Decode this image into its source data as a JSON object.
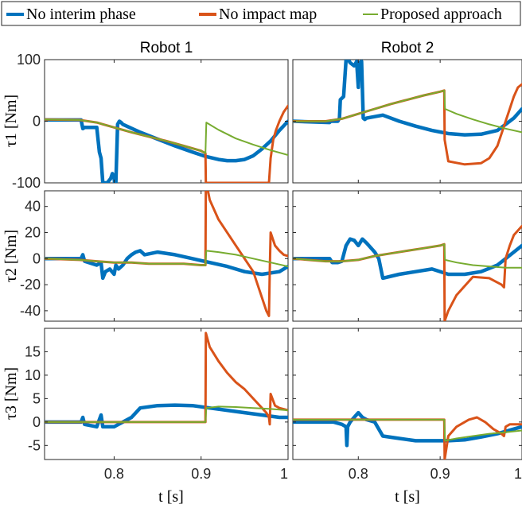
{
  "chart_data": {
    "type": "line",
    "legend": {
      "placement": "top",
      "entries": [
        {
          "name": "No interim phase",
          "color": "#0072BD"
        },
        {
          "name": "No impact map",
          "color": "#D95319"
        },
        {
          "name": "Proposed approach",
          "color": "#77AC30"
        }
      ]
    },
    "columns": [
      {
        "title": "Robot 1",
        "xlabel": "t [s]",
        "xlim": [
          0.72,
          1.0
        ],
        "xticks": [
          0.8,
          0.9,
          1
        ],
        "xticklabels": [
          "0.8",
          "0.9",
          "1"
        ]
      },
      {
        "title": "Robot 2",
        "xlabel": "t [s]",
        "xlim": [
          0.72,
          1.0
        ],
        "xticks": [
          0.8,
          0.9,
          1
        ],
        "xticklabels": [
          "0.8",
          "0.9",
          "1"
        ]
      }
    ],
    "rows": [
      {
        "ylabel": "τ1 [Nm]",
        "ylim": [
          -100,
          100
        ],
        "yticks": [
          -100,
          0,
          100
        ],
        "yticklabels": [
          "-100",
          "0",
          "100"
        ]
      },
      {
        "ylabel": "τ2 [Nm]",
        "ylim": [
          -48,
          52
        ],
        "yticks": [
          -40,
          -20,
          0,
          20,
          40
        ],
        "yticklabels": [
          "-40",
          "-20",
          "0",
          "20",
          "40"
        ]
      },
      {
        "ylabel": "τ3 [Nm]",
        "ylim": [
          -8,
          20
        ],
        "yticks": [
          -5,
          0,
          5,
          10,
          15
        ],
        "yticklabels": [
          "-5",
          "0",
          "5",
          "10",
          "15"
        ]
      }
    ],
    "panels": [
      {
        "row": 0,
        "col": 0,
        "series": [
          {
            "name": "No interim phase",
            "x": [
              0.72,
              0.762,
              0.764,
              0.766,
              0.78,
              0.783,
              0.785,
              0.787,
              0.788,
              0.792,
              0.796,
              0.798,
              0.8,
              0.8005,
              0.802,
              0.804,
              0.806,
              0.808,
              0.81,
              0.83,
              0.85,
              0.87,
              0.89,
              0.905,
              0.92,
              0.93,
              0.94,
              0.95,
              0.96,
              0.97,
              0.98,
              0.99,
              1.0
            ],
            "y": [
              2,
              2,
              -12,
              -10,
              -10,
              -50,
              -60,
              -100,
              -100,
              -100,
              -93,
              -85,
              -90,
              -100,
              -100,
              -5,
              0,
              -2,
              -5,
              -18,
              -29,
              -40,
              -50,
              -57,
              -62,
              -64,
              -64,
              -62,
              -56,
              -45,
              -32,
              -15,
              0
            ]
          },
          {
            "name": "No impact map",
            "x": [
              0.72,
              0.76,
              0.78,
              0.8,
              0.82,
              0.84,
              0.86,
              0.88,
              0.9,
              0.905,
              0.9055,
              0.91,
              0.93,
              0.95,
              0.97,
              0.978,
              0.98,
              0.983,
              0.986,
              0.99,
              0.995,
              1.0
            ],
            "y": [
              3,
              2,
              -2,
              -10,
              -18,
              -25,
              -32,
              -40,
              -48,
              -52,
              -100,
              -100,
              -100,
              -100,
              -100,
              -100,
              -60,
              -30,
              -15,
              0,
              15,
              25
            ]
          },
          {
            "name": "Proposed approach",
            "x": [
              0.72,
              0.76,
              0.78,
              0.8,
              0.82,
              0.84,
              0.86,
              0.88,
              0.9,
              0.905,
              0.906,
              0.92,
              0.94,
              0.96,
              0.98,
              1.0
            ],
            "y": [
              3,
              2,
              -2,
              -10,
              -18,
              -25,
              -32,
              -40,
              -48,
              -52,
              -2,
              -14,
              -28,
              -38,
              -47,
              -55
            ]
          }
        ]
      },
      {
        "row": 0,
        "col": 1,
        "series": [
          {
            "name": "No interim phase",
            "x": [
              0.72,
              0.765,
              0.766,
              0.775,
              0.777,
              0.778,
              0.782,
              0.785,
              0.788,
              0.79,
              0.795,
              0.798,
              0.8,
              0.801,
              0.804,
              0.806,
              0.808,
              0.81,
              0.83,
              0.85,
              0.87,
              0.89,
              0.91,
              0.93,
              0.95,
              0.97,
              0.98,
              0.99,
              1.0
            ],
            "y": [
              0,
              -2,
              0,
              0,
              5,
              35,
              40,
              100,
              100,
              95,
              90,
              97,
              55,
              95,
              97,
              5,
              3,
              5,
              10,
              0,
              -8,
              -15,
              -20,
              -22,
              -21,
              -15,
              -5,
              5,
              20
            ]
          },
          {
            "name": "No impact map",
            "x": [
              0.72,
              0.76,
              0.78,
              0.8,
              0.82,
              0.84,
              0.86,
              0.88,
              0.9,
              0.905,
              0.9055,
              0.91,
              0.93,
              0.95,
              0.96,
              0.97,
              0.975,
              0.98,
              0.985,
              0.99,
              0.995,
              1.0
            ],
            "y": [
              0,
              0,
              4,
              12,
              20,
              28,
              35,
              42,
              48,
              50,
              -30,
              -65,
              -70,
              -68,
              -60,
              -40,
              -20,
              0,
              20,
              40,
              55,
              60
            ]
          },
          {
            "name": "Proposed approach",
            "x": [
              0.72,
              0.76,
              0.78,
              0.8,
              0.82,
              0.84,
              0.86,
              0.88,
              0.9,
              0.905,
              0.906,
              0.92,
              0.94,
              0.96,
              0.98,
              1.0
            ],
            "y": [
              0,
              0,
              4,
              12,
              20,
              28,
              35,
              42,
              48,
              50,
              20,
              12,
              3,
              -5,
              -12,
              -18
            ]
          }
        ]
      },
      {
        "row": 1,
        "col": 0,
        "series": [
          {
            "name": "No interim phase",
            "x": [
              0.72,
              0.762,
              0.764,
              0.766,
              0.78,
              0.785,
              0.787,
              0.79,
              0.795,
              0.8,
              0.802,
              0.805,
              0.81,
              0.815,
              0.82,
              0.825,
              0.83,
              0.835,
              0.85,
              0.87,
              0.89,
              0.91,
              0.93,
              0.95,
              0.97,
              0.99,
              1.0
            ],
            "y": [
              0,
              0,
              3,
              -2,
              -5,
              -3,
              -15,
              -10,
              -8,
              -12,
              -5,
              -8,
              -5,
              0,
              3,
              5,
              6,
              3,
              5,
              3,
              0,
              -3,
              -6,
              -10,
              -12,
              -10,
              -6
            ]
          },
          {
            "name": "No impact map",
            "x": [
              0.72,
              0.76,
              0.78,
              0.8,
              0.82,
              0.84,
              0.86,
              0.88,
              0.9,
              0.905,
              0.9055,
              0.91,
              0.92,
              0.94,
              0.96,
              0.975,
              0.978,
              0.979,
              0.98,
              0.985,
              0.99,
              0.995,
              1.0
            ],
            "y": [
              0,
              -1,
              -2,
              -3,
              -3,
              -4,
              -4,
              -4,
              -5,
              -5,
              60,
              45,
              30,
              10,
              -10,
              -40,
              -44,
              -10,
              20,
              10,
              6,
              3,
              2
            ]
          },
          {
            "name": "Proposed approach",
            "x": [
              0.72,
              0.76,
              0.78,
              0.8,
              0.82,
              0.84,
              0.86,
              0.88,
              0.9,
              0.905,
              0.906,
              0.92,
              0.94,
              0.96,
              0.98,
              1.0
            ],
            "y": [
              0,
              -1,
              -2,
              -3,
              -3,
              -4,
              -4,
              -4,
              -5,
              -5,
              6,
              5,
              3,
              0,
              -3,
              -6
            ]
          }
        ]
      },
      {
        "row": 1,
        "col": 1,
        "series": [
          {
            "name": "No interim phase",
            "x": [
              0.72,
              0.765,
              0.768,
              0.775,
              0.78,
              0.785,
              0.79,
              0.795,
              0.8,
              0.805,
              0.81,
              0.82,
              0.825,
              0.83,
              0.85,
              0.87,
              0.89,
              0.91,
              0.93,
              0.95,
              0.97,
              0.99,
              1.0
            ],
            "y": [
              0,
              0,
              -3,
              -3,
              -2,
              10,
              15,
              14,
              10,
              15,
              12,
              5,
              0,
              -15,
              -12,
              -10,
              -8,
              -12,
              -12,
              -10,
              -5,
              5,
              10
            ]
          },
          {
            "name": "No impact map",
            "x": [
              0.72,
              0.76,
              0.78,
              0.8,
              0.82,
              0.84,
              0.86,
              0.88,
              0.9,
              0.905,
              0.9055,
              0.91,
              0.92,
              0.94,
              0.96,
              0.975,
              0.978,
              0.98,
              0.985,
              0.99,
              1.0
            ],
            "y": [
              0,
              -2,
              -2,
              -1,
              2,
              4,
              6,
              8,
              10,
              11,
              -48,
              -40,
              -28,
              -14,
              -15,
              -20,
              -22,
              0,
              10,
              18,
              25
            ]
          },
          {
            "name": "Proposed approach",
            "x": [
              0.72,
              0.76,
              0.78,
              0.8,
              0.82,
              0.84,
              0.86,
              0.88,
              0.9,
              0.905,
              0.906,
              0.92,
              0.94,
              0.96,
              0.98,
              1.0
            ],
            "y": [
              0,
              -2,
              -2,
              -1,
              2,
              4,
              6,
              8,
              10,
              11,
              -1,
              -3,
              -5,
              -6,
              -7,
              -7
            ]
          }
        ]
      },
      {
        "row": 2,
        "col": 0,
        "series": [
          {
            "name": "No interim phase",
            "x": [
              0.72,
              0.762,
              0.764,
              0.766,
              0.78,
              0.785,
              0.787,
              0.79,
              0.795,
              0.8,
              0.805,
              0.81,
              0.82,
              0.83,
              0.85,
              0.87,
              0.89,
              0.91,
              0.93,
              0.95,
              0.97,
              0.99,
              1.0
            ],
            "y": [
              0,
              0,
              1,
              -0.5,
              -1,
              1.5,
              -1,
              -1,
              -1,
              -1,
              -0.5,
              0,
              1,
              3,
              3.5,
              3.6,
              3.5,
              3,
              2.5,
              2,
              1.5,
              1,
              1
            ]
          },
          {
            "name": "No impact map",
            "x": [
              0.72,
              0.76,
              0.8,
              0.84,
              0.88,
              0.905,
              0.9055,
              0.91,
              0.92,
              0.93,
              0.94,
              0.95,
              0.96,
              0.975,
              0.978,
              0.979,
              0.98,
              0.985,
              0.99,
              1.0
            ],
            "y": [
              0,
              0,
              0,
              0,
              0,
              0,
              19,
              16,
              13,
              10.5,
              8.5,
              7,
              5,
              2,
              1,
              -0.5,
              6,
              3.5,
              3,
              2.5
            ]
          },
          {
            "name": "Proposed approach",
            "x": [
              0.72,
              0.76,
              0.8,
              0.84,
              0.88,
              0.905,
              0.906,
              0.92,
              0.94,
              0.96,
              0.98,
              1.0
            ],
            "y": [
              0,
              0,
              0,
              0,
              0,
              0,
              3,
              3.3,
              3.2,
              3,
              2.8,
              2.5
            ]
          }
        ]
      },
      {
        "row": 2,
        "col": 1,
        "series": [
          {
            "name": "No interim phase",
            "x": [
              0.72,
              0.765,
              0.77,
              0.78,
              0.785,
              0.786,
              0.787,
              0.79,
              0.795,
              0.8,
              0.805,
              0.81,
              0.82,
              0.83,
              0.85,
              0.87,
              0.89,
              0.91,
              0.93,
              0.95,
              0.97,
              0.99,
              1.0
            ],
            "y": [
              0,
              0,
              0,
              -0.5,
              -1,
              -5,
              -1,
              0,
              1,
              2,
              1,
              0.5,
              0,
              -3,
              -3.5,
              -4,
              -4,
              -4,
              -3.8,
              -3.2,
              -2.5,
              -1.5,
              -1
            ]
          },
          {
            "name": "No impact map",
            "x": [
              0.72,
              0.76,
              0.8,
              0.84,
              0.88,
              0.905,
              0.9055,
              0.91,
              0.92,
              0.935,
              0.945,
              0.955,
              0.965,
              0.975,
              0.978,
              0.98,
              0.985,
              0.99,
              1.0
            ],
            "y": [
              0.5,
              0.5,
              0.5,
              0.5,
              0.5,
              0.5,
              -8,
              -3,
              -1,
              0.5,
              1,
              0,
              -1.5,
              -2.5,
              -3,
              -1,
              -0.5,
              -0.5,
              -0.5
            ]
          },
          {
            "name": "Proposed approach",
            "x": [
              0.72,
              0.76,
              0.8,
              0.84,
              0.88,
              0.905,
              0.906,
              0.92,
              0.94,
              0.96,
              0.98,
              1.0
            ],
            "y": [
              0.5,
              0.5,
              0.5,
              0.5,
              0.5,
              0.5,
              -4,
              -3.5,
              -3,
              -2.5,
              -2.2,
              -1.8
            ]
          }
        ]
      }
    ]
  }
}
